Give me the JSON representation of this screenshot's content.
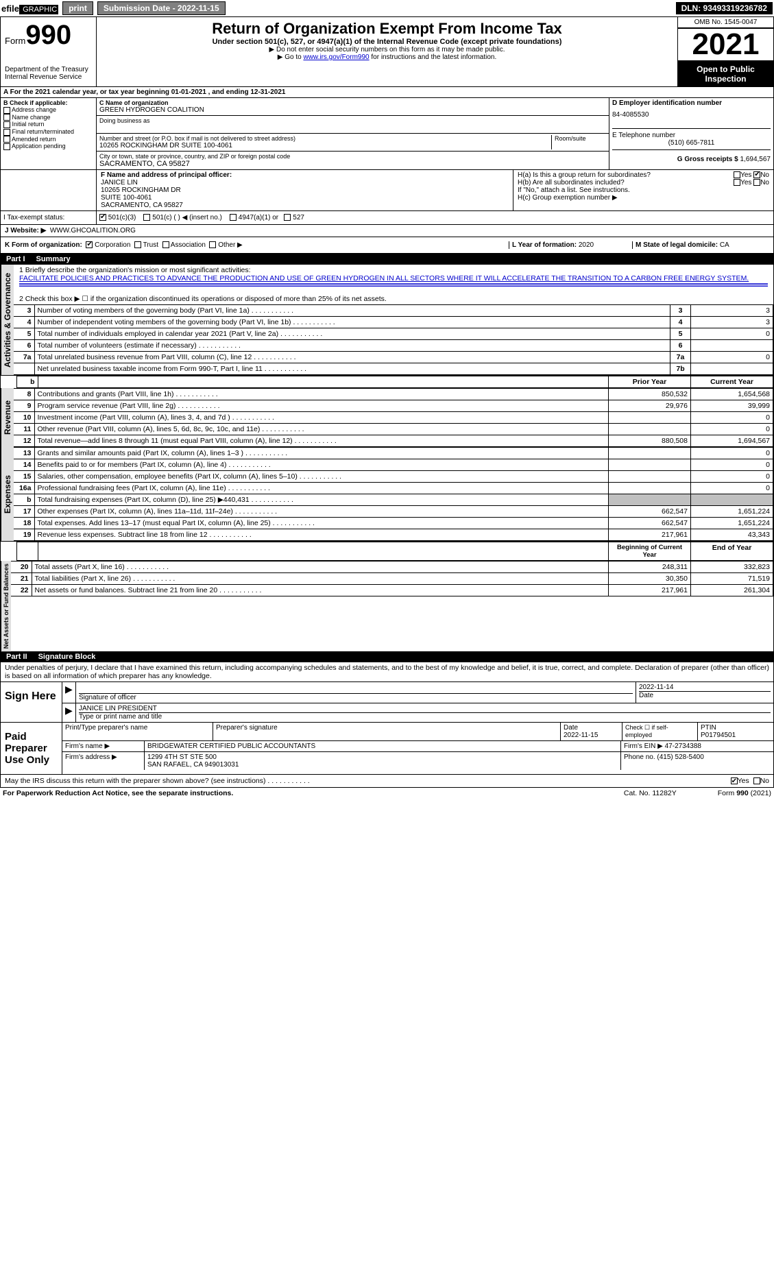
{
  "topbar": {
    "efile_prefix": "efile",
    "efile_suffix": " GRAPHIC ",
    "print": "print",
    "submission_date": "Submission Date - 2022-11-15",
    "dln": "DLN: 93493319236782"
  },
  "header": {
    "form_label": "Form",
    "form_number": "990",
    "dept": "Department of the Treasury",
    "irs": "Internal Revenue Service",
    "title": "Return of Organization Exempt From Income Tax",
    "subtitle": "Under section 501(c), 527, or 4947(a)(1) of the Internal Revenue Code (except private foundations)",
    "note1": "▶ Do not enter social security numbers on this form as it may be made public.",
    "note2_prefix": "▶ Go to ",
    "note2_link": "www.irs.gov/Form990",
    "note2_suffix": " for instructions and the latest information.",
    "omb": "OMB No. 1545-0047",
    "year": "2021",
    "inspect": "Open to Public Inspection"
  },
  "periodA": "For the 2021 calendar year, or tax year beginning 01-01-2021    , and ending 12-31-2021",
  "sectionB": {
    "label": "B Check if applicable:",
    "opts": [
      "Address change",
      "Name change",
      "Initial return",
      "Final return/terminated",
      "Amended return",
      "Application pending"
    ],
    "c_label": "C Name of organization",
    "org_name": "GREEN HYDROGEN COALITION",
    "dba_label": "Doing business as",
    "street_label": "Number and street (or P.O. box if mail is not delivered to street address)",
    "room_label": "Room/suite",
    "street": "10265 ROCKINGHAM DR SUITE 100-4061",
    "city_label": "City or town, state or province, country, and ZIP or foreign postal code",
    "city": "SACRAMENTO, CA  95827",
    "d_label": "D Employer identification number",
    "ein": "84-4085530",
    "e_label": "E Telephone number",
    "phone": "(510) 665-7811",
    "g_label": "G Gross receipts $",
    "gross": "1,694,567",
    "f_label": "F  Name and address of principal officer:",
    "officer_name": "JANICE LIN",
    "officer_addr1": "10265 ROCKINGHAM DR",
    "officer_addr2": "SUITE 100-4061",
    "officer_addr3": "SACRAMENTO, CA  95827",
    "ha_label": "H(a)  Is this a group return for subordinates?",
    "hb_label": "H(b)  Are all subordinates included?",
    "h_note": "If \"No,\" attach a list. See instructions.",
    "hc_label": "H(c)  Group exemption number ▶",
    "yes": "Yes",
    "no": "No"
  },
  "sectionI": {
    "label": "I     Tax-exempt status:",
    "opt1": "501(c)(3)",
    "opt2": "501(c) (   ) ◀ (insert no.)",
    "opt3": "4947(a)(1) or",
    "opt4": "527"
  },
  "sectionJ": {
    "label": "J    Website: ▶",
    "url": "WWW.GHCOALITION.ORG"
  },
  "sectionK": {
    "label": "K Form of organization:",
    "corp": "Corporation",
    "trust": "Trust",
    "assoc": "Association",
    "other": "Other ▶",
    "l_label": "L Year of formation:",
    "l_val": "2020",
    "m_label": "M State of legal domicile:",
    "m_val": "CA"
  },
  "partI": {
    "header_part": "Part I",
    "header_title": "Summary",
    "line1_label": "1  Briefly describe the organization's mission or most significant activities:",
    "mission": "FACILITATE POLICIES AND PRACTICES TO ADVANCE THE PRODUCTION AND USE OF GREEN HYDROGEN IN ALL SECTORS WHERE IT WILL ACCELERATE THE TRANSITION TO A CARBON FREE ENERGY SYSTEM.",
    "line2": "2   Check this box ▶ ☐  if the organization discontinued its operations or disposed of more than 25% of its net assets."
  },
  "summary_small": [
    {
      "n": "3",
      "d": "Number of voting members of the governing body (Part VI, line 1a)",
      "b": "3",
      "v": "3"
    },
    {
      "n": "4",
      "d": "Number of independent voting members of the governing body (Part VI, line 1b)",
      "b": "4",
      "v": "3"
    },
    {
      "n": "5",
      "d": "Total number of individuals employed in calendar year 2021 (Part V, line 2a)",
      "b": "5",
      "v": "0"
    },
    {
      "n": "6",
      "d": "Total number of volunteers (estimate if necessary)",
      "b": "6",
      "v": ""
    },
    {
      "n": "7a",
      "d": "Total unrelated business revenue from Part VIII, column (C), line 12",
      "b": "7a",
      "v": "0"
    },
    {
      "n": "",
      "d": "Net unrelated business taxable income from Form 990-T, Part I, line 11",
      "b": "7b",
      "v": ""
    }
  ],
  "col_headers": {
    "b": "b",
    "prior": "Prior Year",
    "current": "Current Year",
    "boy": "Beginning of Current Year",
    "eoy": "End of Year"
  },
  "revenue": [
    {
      "n": "8",
      "d": "Contributions and grants (Part VIII, line 1h)",
      "p": "850,532",
      "c": "1,654,568"
    },
    {
      "n": "9",
      "d": "Program service revenue (Part VIII, line 2g)",
      "p": "29,976",
      "c": "39,999"
    },
    {
      "n": "10",
      "d": "Investment income (Part VIII, column (A), lines 3, 4, and 7d )",
      "p": "",
      "c": "0"
    },
    {
      "n": "11",
      "d": "Other revenue (Part VIII, column (A), lines 5, 6d, 8c, 9c, 10c, and 11e)",
      "p": "",
      "c": "0"
    },
    {
      "n": "12",
      "d": "Total revenue—add lines 8 through 11 (must equal Part VIII, column (A), line 12)",
      "p": "880,508",
      "c": "1,694,567"
    }
  ],
  "expenses": [
    {
      "n": "13",
      "d": "Grants and similar amounts paid (Part IX, column (A), lines 1–3 )",
      "p": "",
      "c": "0"
    },
    {
      "n": "14",
      "d": "Benefits paid to or for members (Part IX, column (A), line 4)",
      "p": "",
      "c": "0"
    },
    {
      "n": "15",
      "d": "Salaries, other compensation, employee benefits (Part IX, column (A), lines 5–10)",
      "p": "",
      "c": "0"
    },
    {
      "n": "16a",
      "d": "Professional fundraising fees (Part IX, column (A), line 11e)",
      "p": "",
      "c": "0"
    },
    {
      "n": "b",
      "d": "Total fundraising expenses (Part IX, column (D), line 25) ▶440,431",
      "p": "SHADE",
      "c": "SHADE"
    },
    {
      "n": "17",
      "d": "Other expenses (Part IX, column (A), lines 11a–11d, 11f–24e)",
      "p": "662,547",
      "c": "1,651,224"
    },
    {
      "n": "18",
      "d": "Total expenses. Add lines 13–17 (must equal Part IX, column (A), line 25)",
      "p": "662,547",
      "c": "1,651,224"
    },
    {
      "n": "19",
      "d": "Revenue less expenses. Subtract line 18 from line 12",
      "p": "217,961",
      "c": "43,343"
    }
  ],
  "netassets": [
    {
      "n": "20",
      "d": "Total assets (Part X, line 16)",
      "p": "248,311",
      "c": "332,823"
    },
    {
      "n": "21",
      "d": "Total liabilities (Part X, line 26)",
      "p": "30,350",
      "c": "71,519"
    },
    {
      "n": "22",
      "d": "Net assets or fund balances. Subtract line 21 from line 20",
      "p": "217,961",
      "c": "261,304"
    }
  ],
  "side_labels": {
    "gov": "Activities & Governance",
    "rev": "Revenue",
    "exp": "Expenses",
    "net": "Net Assets or Fund Balances"
  },
  "partII": {
    "header_part": "Part II",
    "header_title": "Signature Block",
    "declaration": "Under penalties of perjury, I declare that I have examined this return, including accompanying schedules and statements, and to the best of my knowledge and belief, it is true, correct, and complete. Declaration of preparer (other than officer) is based on all information of which preparer has any knowledge."
  },
  "sign": {
    "label": "Sign Here",
    "sig_officer": "Signature of officer",
    "date_label": "Date",
    "date": "2022-11-14",
    "typed": "JANICE LIN  PRESIDENT",
    "typed_label": "Type or print name and title"
  },
  "preparer": {
    "label": "Paid Preparer Use Only",
    "name_label": "Print/Type preparer's name",
    "sig_label": "Preparer's signature",
    "date_label": "Date",
    "date": "2022-11-15",
    "check_label": "Check ☐ if self-employed",
    "ptin_label": "PTIN",
    "ptin": "P01794501",
    "firm_name_label": "Firm's name    ▶",
    "firm_name": "BRIDGEWATER CERTIFIED PUBLIC ACCOUNTANTS",
    "firm_ein_label": "Firm's EIN ▶",
    "firm_ein": "47-2734388",
    "firm_addr_label": "Firm's address ▶",
    "firm_addr1": "1299 4TH ST STE 500",
    "firm_addr2": "SAN RAFAEL, CA  949013031",
    "phone_label": "Phone no.",
    "phone": "(415) 528-5400",
    "discuss": "May the IRS discuss this return with the preparer shown above? (see instructions)"
  },
  "footer": {
    "left": "For Paperwork Reduction Act Notice, see the separate instructions.",
    "mid": "Cat. No. 11282Y",
    "right": "Form 990 (2021)"
  },
  "colors": {
    "black": "#000000",
    "white": "#ffffff",
    "gray_btn": "#808080",
    "gray_shade": "#c0c0c0",
    "gray_side": "#e0e0e0",
    "link": "#0000cc"
  }
}
